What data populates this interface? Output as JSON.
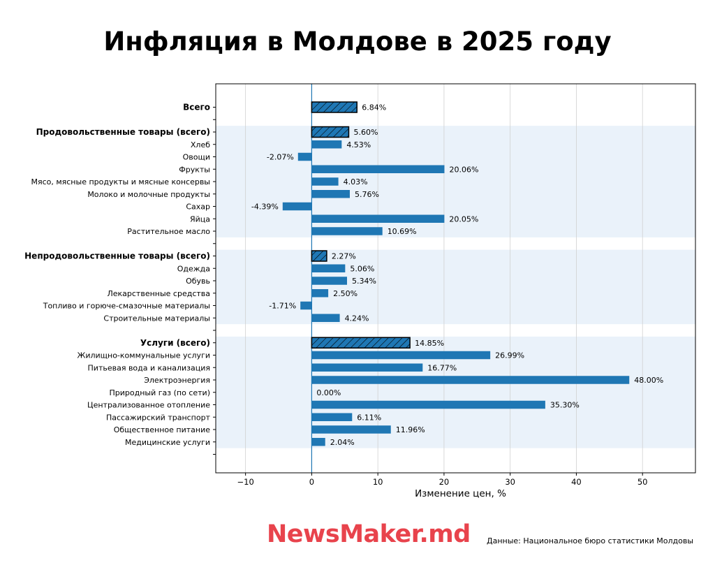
{
  "title": "Инфляция в Молдове в 2025 году",
  "logo_text": "NewsMaker.md",
  "source": "Данные: Национальное бюро статистики Молдовы",
  "colors": {
    "bar": "#1f77b4",
    "band": "#eaf2fa",
    "grid": "#d0d0d0",
    "zero_line": "#1f77b4"
  },
  "chart_data": {
    "type": "bar",
    "orientation": "horizontal",
    "xlabel": "Изменение цен, %",
    "xlim": [
      -14.5,
      58
    ],
    "xticks": [
      -10,
      0,
      10,
      20,
      30,
      40,
      50
    ],
    "xtick_labels": [
      "−10",
      "0",
      "10",
      "20",
      "30",
      "40",
      "50"
    ],
    "grid": "x",
    "rows": [
      {
        "label": "Всего",
        "value": 6.84,
        "value_label": "6.84%",
        "total": true,
        "band": false
      },
      {
        "spacer": true
      },
      {
        "label": "Продовольственные товары (всего)",
        "value": 5.6,
        "value_label": "5.60%",
        "total": true,
        "band": true
      },
      {
        "label": "Хлеб",
        "value": 4.53,
        "value_label": "4.53%",
        "band": true
      },
      {
        "label": "Овощи",
        "value": -2.07,
        "value_label": "-2.07%",
        "band": true
      },
      {
        "label": "Фрукты",
        "value": 20.06,
        "value_label": "20.06%",
        "band": true
      },
      {
        "label": "Мясо, мясные продукты и мясные консервы",
        "value": 4.03,
        "value_label": "4.03%",
        "band": true
      },
      {
        "label": "Молоко и молочные продукты",
        "value": 5.76,
        "value_label": "5.76%",
        "band": true
      },
      {
        "label": "Сахар",
        "value": -4.39,
        "value_label": "-4.39%",
        "band": true
      },
      {
        "label": "Яйца",
        "value": 20.05,
        "value_label": "20.05%",
        "band": true
      },
      {
        "label": "Растительное масло",
        "value": 10.69,
        "value_label": "10.69%",
        "band": true
      },
      {
        "spacer": true
      },
      {
        "label": "Непродовольственные товары (всего)",
        "value": 2.27,
        "value_label": "2.27%",
        "total": true,
        "band": true
      },
      {
        "label": "Одежда",
        "value": 5.06,
        "value_label": "5.06%",
        "band": true
      },
      {
        "label": "Обувь",
        "value": 5.34,
        "value_label": "5.34%",
        "band": true
      },
      {
        "label": "Лекарственные средства",
        "value": 2.5,
        "value_label": "2.50%",
        "band": true
      },
      {
        "label": "Топливо и горюче-смазочные материалы",
        "value": -1.71,
        "value_label": "-1.71%",
        "band": true
      },
      {
        "label": "Строительные материалы",
        "value": 4.24,
        "value_label": "4.24%",
        "band": true
      },
      {
        "spacer": true
      },
      {
        "label": "Услуги (всего)",
        "value": 14.85,
        "value_label": "14.85%",
        "total": true,
        "band": true
      },
      {
        "label": "Жилищно-коммунальные услуги",
        "value": 26.99,
        "value_label": "26.99%",
        "band": true
      },
      {
        "label": "Питьевая вода и канализация",
        "value": 16.77,
        "value_label": "16.77%",
        "band": true
      },
      {
        "label": "Электроэнергия",
        "value": 48.0,
        "value_label": "48.00%",
        "band": true
      },
      {
        "label": "Природный газ (по сети)",
        "value": 0.0,
        "value_label": "0.00%",
        "band": true
      },
      {
        "label": "Централизованное отопление",
        "value": 35.3,
        "value_label": "35.30%",
        "band": true
      },
      {
        "label": "Пассажирский транспорт",
        "value": 6.11,
        "value_label": "6.11%",
        "band": true
      },
      {
        "label": "Общественное питание",
        "value": 11.96,
        "value_label": "11.96%",
        "band": true
      },
      {
        "label": "Медицинские услуги",
        "value": 2.04,
        "value_label": "2.04%",
        "band": true
      },
      {
        "spacer": true
      }
    ]
  }
}
